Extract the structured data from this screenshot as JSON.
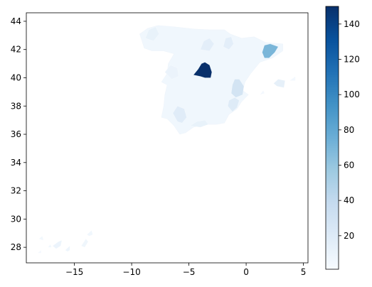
{
  "chart_data": {
    "type": "choropleth",
    "title": "",
    "xlabel": "",
    "ylabel": "",
    "xlim": [
      -19.2,
      5.4
    ],
    "ylim": [
      26.9,
      44.6
    ],
    "x_ticks": [
      -15,
      -10,
      -5,
      0,
      5
    ],
    "y_ticks": [
      28,
      30,
      32,
      34,
      36,
      38,
      40,
      42,
      44
    ],
    "grid": false,
    "colormap": "Blues",
    "colorbar": {
      "range": [
        1,
        150
      ],
      "ticks": [
        20,
        40,
        60,
        80,
        100,
        120,
        140
      ],
      "stops": [
        "#f7fbff",
        "#deebf7",
        "#c6dbef",
        "#9ecae1",
        "#6baed6",
        "#4292c6",
        "#2171b5",
        "#08519c",
        "#08306b"
      ]
    },
    "regions": [
      {
        "value": 150,
        "polygon": [
          [
            -4.6,
            40.2
          ],
          [
            -4.2,
            40.6
          ],
          [
            -3.9,
            41.0
          ],
          [
            -3.6,
            41.1
          ],
          [
            -3.2,
            40.9
          ],
          [
            -3.0,
            40.4
          ],
          [
            -3.1,
            40.0
          ],
          [
            -3.6,
            40.0
          ],
          [
            -4.0,
            40.1
          ]
        ]
      },
      {
        "value": 70,
        "polygon": [
          [
            1.4,
            41.8
          ],
          [
            1.6,
            42.3
          ],
          [
            2.1,
            42.4
          ],
          [
            2.8,
            42.2
          ],
          [
            2.5,
            41.8
          ],
          [
            2.0,
            41.4
          ],
          [
            1.6,
            41.4
          ]
        ]
      },
      {
        "value": 28,
        "polygon": [
          [
            -1.3,
            38.9
          ],
          [
            -1.2,
            39.5
          ],
          [
            -1.0,
            39.9
          ],
          [
            -0.6,
            39.9
          ],
          [
            -0.2,
            39.4
          ],
          [
            -0.3,
            38.8
          ],
          [
            -0.9,
            38.6
          ]
        ]
      },
      {
        "value": 20,
        "polygon": [
          [
            -1.6,
            38.0
          ],
          [
            -1.5,
            38.4
          ],
          [
            -1.0,
            38.6
          ],
          [
            -0.6,
            38.4
          ],
          [
            -0.8,
            37.9
          ],
          [
            -1.2,
            37.6
          ]
        ]
      },
      {
        "value": 18,
        "polygon": [
          [
            -6.4,
            37.5
          ],
          [
            -6.0,
            38.0
          ],
          [
            -5.4,
            37.8
          ],
          [
            -5.2,
            37.2
          ],
          [
            -5.6,
            36.8
          ],
          [
            -6.0,
            36.9
          ]
        ]
      },
      {
        "value": 16,
        "polygon": [
          [
            -4.0,
            42.0
          ],
          [
            -3.7,
            42.6
          ],
          [
            -3.2,
            42.8
          ],
          [
            -2.8,
            42.4
          ],
          [
            -3.2,
            41.9
          ]
        ]
      },
      {
        "value": 16,
        "polygon": [
          [
            -2.0,
            42.2
          ],
          [
            -1.8,
            42.8
          ],
          [
            -1.3,
            42.9
          ],
          [
            -1.1,
            42.4
          ],
          [
            -1.5,
            42.0
          ]
        ]
      },
      {
        "value": 14,
        "polygon": [
          [
            2.4,
            39.6
          ],
          [
            2.8,
            39.9
          ],
          [
            3.4,
            39.8
          ],
          [
            3.3,
            39.3
          ],
          [
            2.7,
            39.4
          ]
        ]
      },
      {
        "value": 12,
        "polygon": [
          [
            -8.8,
            42.8
          ],
          [
            -8.5,
            43.4
          ],
          [
            -7.9,
            43.6
          ],
          [
            -7.6,
            43.1
          ],
          [
            -8.1,
            42.6
          ]
        ]
      },
      {
        "value": 12,
        "polygon": [
          [
            -4.9,
            36.6
          ],
          [
            -4.3,
            36.9
          ],
          [
            -3.6,
            37.0
          ],
          [
            -3.3,
            36.7
          ],
          [
            -4.0,
            36.5
          ]
        ]
      },
      {
        "value": 10,
        "polygon": [
          [
            -7.1,
            40.4
          ],
          [
            -6.6,
            40.9
          ],
          [
            -6.0,
            40.7
          ],
          [
            -5.9,
            40.1
          ],
          [
            -6.5,
            39.9
          ]
        ]
      },
      {
        "value": 9,
        "polygon": [
          [
            -16.9,
            28.1
          ],
          [
            -16.4,
            28.4
          ],
          [
            -16.1,
            28.5
          ],
          [
            -16.2,
            28.1
          ],
          [
            -16.6,
            27.9
          ]
        ]
      },
      {
        "value": 8,
        "polygon": [
          [
            -15.8,
            27.8
          ],
          [
            -15.4,
            28.1
          ],
          [
            -15.4,
            27.8
          ],
          [
            -15.6,
            27.7
          ]
        ]
      },
      {
        "value": 7,
        "polygon": [
          [
            -14.4,
            28.1
          ],
          [
            -14.0,
            28.6
          ],
          [
            -13.8,
            28.4
          ],
          [
            -14.1,
            28.0
          ]
        ]
      },
      {
        "value": 6,
        "polygon": [
          [
            -13.9,
            28.9
          ],
          [
            -13.5,
            29.2
          ],
          [
            -13.4,
            28.9
          ],
          [
            -13.7,
            28.8
          ]
        ]
      },
      {
        "value": 6,
        "polygon": [
          [
            -17.3,
            28.0
          ],
          [
            -17.1,
            28.2
          ],
          [
            -17.0,
            28.0
          ]
        ]
      },
      {
        "value": 5,
        "polygon": [
          [
            -18.1,
            28.6
          ],
          [
            -17.8,
            28.8
          ],
          [
            -17.7,
            28.5
          ]
        ]
      },
      {
        "value": 4,
        "polygon": [
          [
            -18.2,
            27.6
          ],
          [
            -17.9,
            27.8
          ],
          [
            -17.9,
            27.6
          ]
        ]
      },
      {
        "value": 4,
        "polygon": [
          [
            1.2,
            38.8
          ],
          [
            1.5,
            39.1
          ],
          [
            1.6,
            38.9
          ]
        ]
      },
      {
        "value": 4,
        "polygon": [
          [
            3.8,
            39.8
          ],
          [
            4.3,
            40.1
          ],
          [
            4.3,
            39.8
          ]
        ]
      }
    ]
  }
}
